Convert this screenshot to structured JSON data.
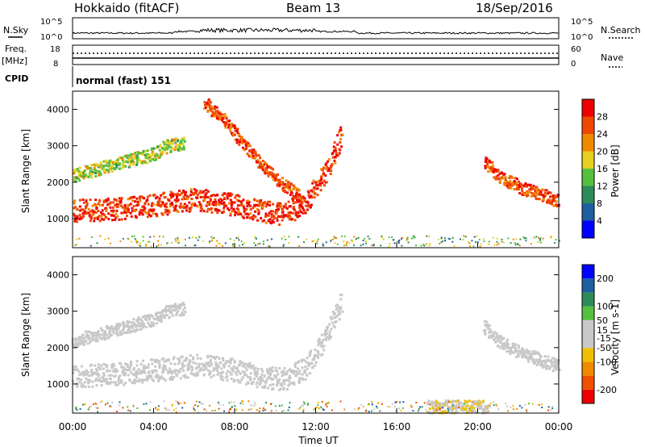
{
  "header": {
    "station": "Hokkaido (fitACF)",
    "beam": "Beam 13",
    "date": "18/Sep/2016"
  },
  "noise_panel": {
    "left_label": "N.Sky",
    "right_label": "N.Search",
    "left_ticks": [
      "10^5",
      "10^0"
    ],
    "right_ticks": [
      "10^5",
      "10^0"
    ]
  },
  "freq_panel": {
    "left_label_top": "Freq.",
    "left_label_bottom": "[MHz]",
    "right_label": "Nave",
    "left_ticks": [
      "18",
      "8"
    ],
    "right_ticks": [
      "60",
      "0"
    ]
  },
  "cpid_panel": {
    "label": "CPID",
    "mode": "normal (fast) 151"
  },
  "colors": {
    "power_scale": [
      "#0000ff",
      "#1e5fa0",
      "#2e8b57",
      "#55c040",
      "#e6d020",
      "#f08a00",
      "#f04800",
      "#ee0000"
    ],
    "velocity_scale": [
      "#ee0000",
      "#f05000",
      "#f08a00",
      "#f0c000",
      "#c8c8c8",
      "#c8c8c8",
      "#55c040",
      "#2e8b57",
      "#1e5fa0",
      "#0000ff"
    ]
  },
  "chart_data": [
    {
      "type": "heatmap",
      "name": "power",
      "ylabel": "Slant Range [km]",
      "yticks": [
        "1000",
        "2000",
        "3000",
        "4000"
      ],
      "ylim": [
        200,
        4500
      ],
      "colorbar_label": "Power [dB]",
      "colorbar_ticks": [
        "4",
        "8",
        "12",
        "16",
        "20",
        "24",
        "28"
      ],
      "colorbar_range": [
        0,
        32
      ],
      "echo_bands": [
        {
          "t_hours": [
            0,
            2,
            4,
            6,
            8,
            9.5,
            10.5,
            11.5,
            12.5,
            13.3
          ],
          "range_km": [
            1250,
            1280,
            1400,
            1550,
            1400,
            1200,
            1150,
            1500,
            2300,
            3400
          ],
          "power_db": 28
        },
        {
          "t_hours": [
            0,
            2,
            4,
            4.5,
            5,
            5.5
          ],
          "range_km": [
            2200,
            2500,
            2800,
            3000,
            3050,
            3100
          ],
          "power_db": 16
        },
        {
          "t_hours": [
            20.3,
            21,
            22,
            23,
            24
          ],
          "range_km": [
            2600,
            2200,
            1900,
            1700,
            1500
          ],
          "power_db": 26
        },
        {
          "t_hours": [
            6.5,
            7.5,
            8.5,
            9.5,
            10.5,
            11.3
          ],
          "range_km": [
            4200,
            3700,
            3000,
            2400,
            1900,
            1600
          ],
          "power_db": 26
        }
      ]
    },
    {
      "type": "heatmap",
      "name": "velocity",
      "ylabel": "Slant Range [km]",
      "yticks": [
        "1000",
        "2000",
        "3000",
        "4000"
      ],
      "ylim": [
        200,
        4500
      ],
      "colorbar_label": "Velocity [m s-1]",
      "colorbar_ticks": [
        "200",
        "100",
        "50",
        "15",
        "-15",
        "-50",
        "-100",
        "-200"
      ],
      "colorbar_range": [
        -250,
        250
      ],
      "echo_bands": [
        {
          "t_hours": [
            0,
            2,
            4,
            6,
            8,
            9.5,
            10.5,
            11.5,
            12.5,
            13.3
          ],
          "range_km": [
            1250,
            1280,
            1400,
            1550,
            1400,
            1200,
            1150,
            1500,
            2300,
            3400
          ],
          "velocity": 0
        },
        {
          "t_hours": [
            0,
            2,
            4,
            4.5,
            5,
            5.5
          ],
          "range_km": [
            2200,
            2500,
            2800,
            3000,
            3050,
            3100
          ],
          "velocity": 0
        },
        {
          "t_hours": [
            20.3,
            21,
            22,
            23,
            24
          ],
          "range_km": [
            2600,
            2200,
            1900,
            1700,
            1500
          ],
          "velocity": 0
        },
        {
          "t_hours": [
            17.5,
            18.5,
            19.5,
            20.5
          ],
          "range_km": [
            400,
            400,
            400,
            400
          ],
          "velocity": -40
        }
      ]
    }
  ],
  "xaxis": {
    "label": "Time UT",
    "ticks": [
      "00:00",
      "04:00",
      "08:00",
      "12:00",
      "16:00",
      "20:00",
      "00:00"
    ],
    "range_hours": [
      0,
      24
    ]
  }
}
